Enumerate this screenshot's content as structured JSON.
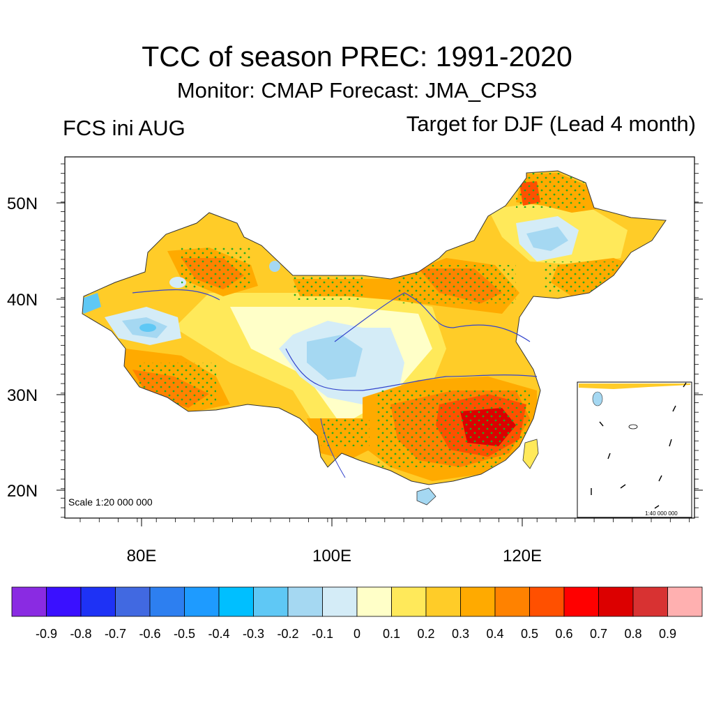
{
  "header": {
    "title": "TCC of season PREC: 1991-2020",
    "subtitle": "Monitor: CMAP   Forecast: JMA_CPS3",
    "left_label": "FCS ini AUG",
    "right_label": "Target for DJF (Lead 4 month)"
  },
  "map": {
    "lat_labels": [
      "50N",
      "40N",
      "30N",
      "20N"
    ],
    "lon_labels": [
      "80E",
      "100E",
      "120E"
    ],
    "scale_text": "Scale 1:20 000 000",
    "inset_scale_text": "1:40 000 000"
  },
  "colorbar": {
    "labels": [
      "-0.9",
      "-0.8",
      "-0.7",
      "-0.6",
      "-0.5",
      "-0.4",
      "-0.3",
      "-0.2",
      "-0.1",
      "0",
      "0.1",
      "0.2",
      "0.3",
      "0.4",
      "0.5",
      "0.6",
      "0.7",
      "0.8",
      "0.9"
    ],
    "colors": [
      "#8a2be2",
      "#3a10ff",
      "#1e32f5",
      "#4169e1",
      "#2d7ff0",
      "#1e9bff",
      "#00bfff",
      "#5fc8f5",
      "#a5d8f2",
      "#d4ecf7",
      "#ffffc8",
      "#ffe95a",
      "#ffcc28",
      "#ffaa00",
      "#ff8200",
      "#ff5000",
      "#ff0000",
      "#dc0000",
      "#d83232",
      "#ffb0b0"
    ]
  }
}
